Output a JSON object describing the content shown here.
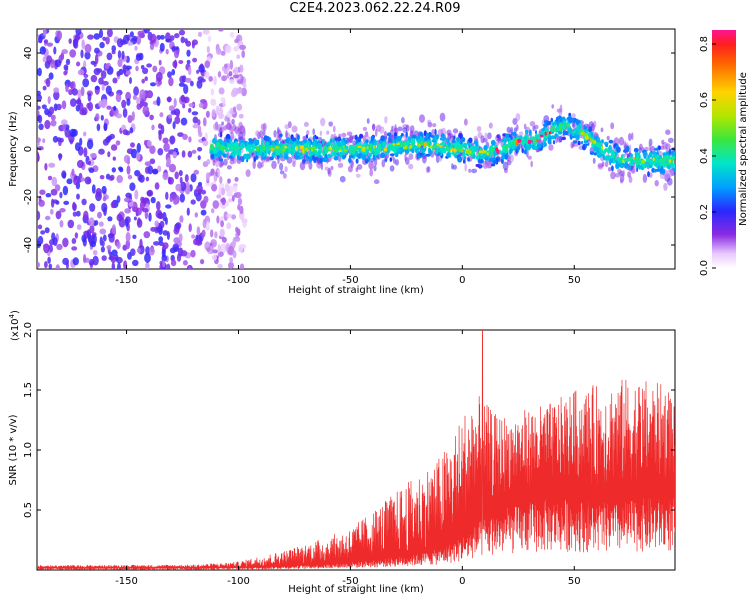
{
  "title": "C2E4.2023.062.22.24.R09",
  "colors": {
    "snr_line": "#ee2a2a",
    "axis": "#000000"
  },
  "chart_data": [
    {
      "type": "heatmap",
      "xlabel": "Height of straight line (km)",
      "ylabel": "Frequency (Hz)",
      "xlim": [
        -190,
        95
      ],
      "ylim": [
        -50,
        50
      ],
      "xticks": [
        "-150",
        "-100",
        "-50",
        "0",
        "50"
      ],
      "xtick_values": [
        -150,
        -100,
        -50,
        0,
        50
      ],
      "yticks": [
        "-40",
        "-20",
        "0",
        "20",
        "40"
      ],
      "ytick_values": [
        -40,
        -20,
        0,
        20,
        40
      ],
      "colorbar": {
        "label": "Normalized spectral amplitude",
        "range": [
          0.0,
          0.85
        ],
        "ticks": [
          "0.0",
          "0.2",
          "0.4",
          "0.6",
          "0.8"
        ],
        "tick_values": [
          0.0,
          0.2,
          0.4,
          0.6,
          0.8
        ]
      },
      "noise_region_x": [
        -190,
        -105
      ],
      "signal_ridge": {
        "x": [
          -112,
          -100,
          -80,
          -60,
          -40,
          -20,
          0,
          10,
          20,
          27,
          33,
          40,
          47,
          55,
          62,
          70,
          80,
          95
        ],
        "freq": [
          1,
          0,
          0,
          0,
          0,
          2,
          0,
          -2,
          1,
          4,
          3,
          8,
          10,
          6,
          0,
          -4,
          -5,
          -5
        ]
      }
    },
    {
      "type": "line",
      "xlabel": "Height of straight line (km)",
      "ylabel": "SNR (10 * v/v)",
      "exponent_label": "(x10",
      "exponent_power": "4",
      "exponent_close": ")",
      "xlim": [
        -190,
        95
      ],
      "ylim": [
        0,
        20000
      ],
      "xticks": [
        "-150",
        "-100",
        "-50",
        "0",
        "50"
      ],
      "xtick_values": [
        -150,
        -100,
        -50,
        0,
        50
      ],
      "yticks": [
        "0.5",
        "1.0",
        "1.5",
        "2.0"
      ],
      "ytick_values": [
        5000,
        10000,
        15000,
        20000
      ],
      "envelope": {
        "x": [
          -190,
          -120,
          -100,
          -90,
          -80,
          -70,
          -60,
          -50,
          -40,
          -30,
          -20,
          -10,
          -5,
          0,
          5,
          10,
          15,
          20,
          30,
          40,
          50,
          60,
          70,
          80,
          90,
          95
        ],
        "base": [
          200,
          200,
          250,
          300,
          400,
          500,
          600,
          800,
          1000,
          1300,
          1700,
          2200,
          2800,
          3500,
          4500,
          5500,
          6000,
          6500,
          7000,
          7500,
          7500,
          7000,
          7000,
          7500,
          7500,
          7500
        ],
        "peak": [
          400,
          450,
          700,
          1200,
          1600,
          2200,
          2800,
          3500,
          5000,
          6500,
          8000,
          9500,
          11000,
          13000,
          15000,
          14000,
          13000,
          13000,
          13500,
          14000,
          15000,
          15500,
          16000,
          16000,
          15500,
          15000
        ]
      },
      "spike": {
        "x": 9,
        "y": 20000
      }
    }
  ]
}
